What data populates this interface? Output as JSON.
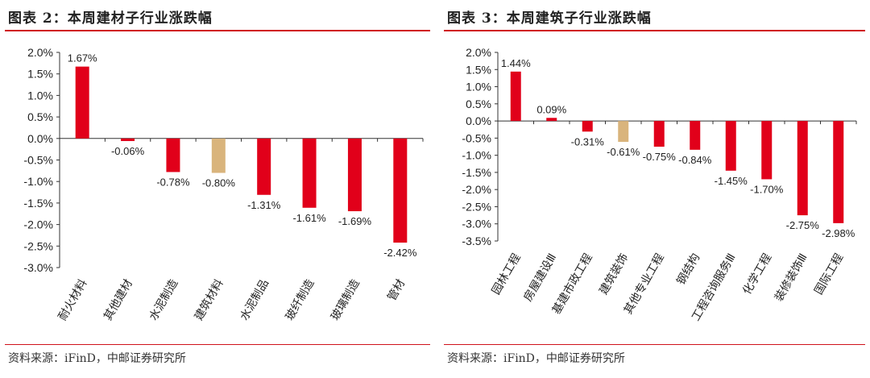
{
  "colors": {
    "bar": "#e1001a",
    "highlight": "#d9b47c",
    "accent": "#d0121b"
  },
  "left": {
    "title": "图表 2：本周建材子行业涨跌幅",
    "source": "资料来源：iFinD，中邮证券研究所"
  },
  "right": {
    "title": "图表 3：本周建筑子行业涨跌幅",
    "source": "资料来源：iFinD，中邮证券研究所"
  },
  "chart_data": [
    {
      "type": "bar",
      "title": "图表 2：本周建材子行业涨跌幅",
      "categories": [
        "耐火材料",
        "其他建材",
        "水泥制造",
        "建筑材料",
        "水泥制品",
        "玻纤制造",
        "玻璃制造",
        "管材"
      ],
      "values": [
        1.67,
        -0.06,
        -0.78,
        -0.8,
        -1.31,
        -1.61,
        -1.69,
        -2.42
      ],
      "labels": [
        "1.67%",
        "-0.06%",
        "-0.78%",
        "-0.80%",
        "-1.31%",
        "-1.61%",
        "-1.69%",
        "-2.42%"
      ],
      "highlight_index": 3,
      "ylim": [
        -3.0,
        2.0
      ],
      "yticks": [
        2.0,
        1.5,
        1.0,
        0.5,
        0.0,
        -0.5,
        -1.0,
        -1.5,
        -2.0,
        -2.5,
        -3.0
      ],
      "ytick_labels": [
        "2.0%",
        "1.5%",
        "1.0%",
        "0.5%",
        "0.0%",
        "-0.5%",
        "-1.0%",
        "-1.5%",
        "-2.0%",
        "-2.5%",
        "-3.0%"
      ],
      "grid": false,
      "legend": "none"
    },
    {
      "type": "bar",
      "title": "图表 3：本周建筑子行业涨跌幅",
      "categories": [
        "园林工程",
        "房屋建设Ⅲ",
        "基建市政工程",
        "建筑装饰",
        "其他专业工程",
        "钢结构",
        "工程咨询服务Ⅲ",
        "化学工程",
        "装修装饰Ⅲ",
        "国际工程"
      ],
      "values": [
        1.44,
        0.09,
        -0.31,
        -0.61,
        -0.75,
        -0.84,
        -1.45,
        -1.7,
        -2.75,
        -2.98
      ],
      "labels": [
        "1.44%",
        "0.09%",
        "-0.31%",
        "-0.61%",
        "-0.75%",
        "-0.84%",
        "-1.45%",
        "-1.70%",
        "-2.75%",
        "-2.98%"
      ],
      "highlight_index": 3,
      "ylim": [
        -3.5,
        2.0
      ],
      "yticks": [
        2.0,
        1.5,
        1.0,
        0.5,
        0.0,
        -0.5,
        -1.0,
        -1.5,
        -2.0,
        -2.5,
        -3.0,
        -3.5
      ],
      "ytick_labels": [
        "2.0%",
        "1.5%",
        "1.0%",
        "0.5%",
        "0.0%",
        "-0.5%",
        "-1.0%",
        "-1.5%",
        "-2.0%",
        "-2.5%",
        "-3.0%",
        "-3.5%"
      ],
      "grid": false,
      "legend": "none"
    }
  ]
}
